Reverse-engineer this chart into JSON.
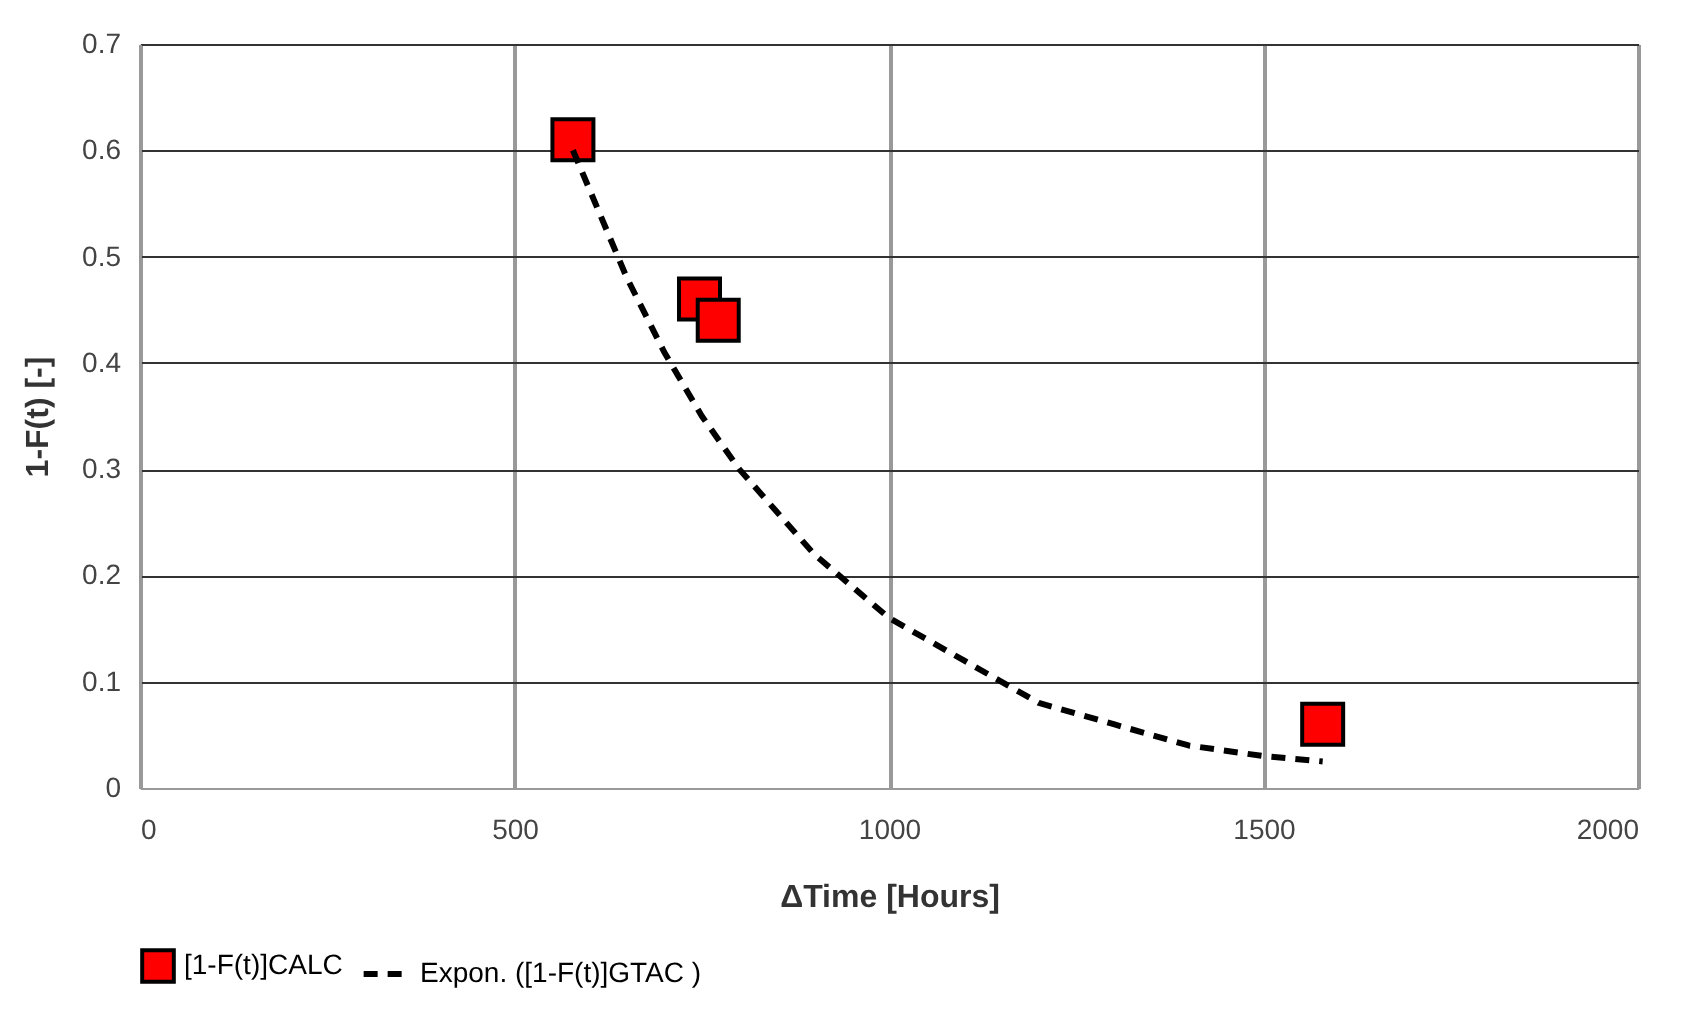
{
  "chart_data": {
    "type": "scatter",
    "xlabel": "ΔTime  [Hours]",
    "ylabel": "1-F(t)  [-]",
    "xlim": [
      0,
      2000
    ],
    "xticks": [
      0,
      500,
      1000,
      1500,
      2000
    ],
    "ylim": [
      0,
      0.7
    ],
    "yticks": [
      0,
      0.1,
      0.2,
      0.3,
      0.4,
      0.5,
      0.6,
      0.7
    ],
    "grid": true,
    "legend": "bottom",
    "series": [
      {
        "name": "[1-F(t)]CALC",
        "marker": "square",
        "color": "#ff0000",
        "x": [
          578,
          747,
          772,
          1579
        ],
        "values": [
          0.61,
          0.46,
          0.44,
          0.06
        ]
      },
      {
        "name": "Expon. ([1-F(t)]GTAC )",
        "type": "line",
        "marker": "none",
        "line_style": "dashed",
        "color": "#000000",
        "x": [
          578,
          650,
          700,
          750,
          800,
          900,
          1000,
          1100,
          1200,
          1300,
          1400,
          1500,
          1579
        ],
        "values": [
          0.6,
          0.48,
          0.41,
          0.35,
          0.3,
          0.22,
          0.16,
          0.12,
          0.08,
          0.06,
          0.04,
          0.03,
          0.025
        ]
      }
    ]
  }
}
